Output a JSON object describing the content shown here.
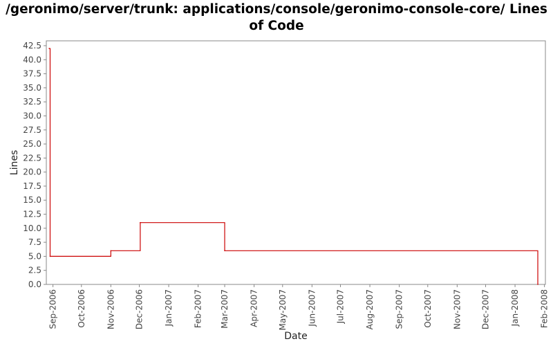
{
  "chart_data": {
    "type": "line",
    "title": "/geronimo/server/trunk: applications/console/geronimo-console-core/ Lines of Code",
    "xlabel": "Date",
    "ylabel": "Lines",
    "x_tick_labels": [
      "Sep-2006",
      "Oct-2006",
      "Nov-2006",
      "Dec-2006",
      "Jan-2007",
      "Feb-2007",
      "Mar-2007",
      "Apr-2007",
      "May-2007",
      "Jun-2007",
      "Jul-2007",
      "Aug-2007",
      "Sep-2007",
      "Oct-2007",
      "Nov-2007",
      "Dec-2007",
      "Jan-2008",
      "Feb-2008"
    ],
    "y_tick_labels": [
      "0.0",
      "2.5",
      "5.0",
      "7.5",
      "10.0",
      "12.5",
      "15.0",
      "17.5",
      "20.0",
      "22.5",
      "25.0",
      "27.5",
      "30.0",
      "32.5",
      "35.0",
      "37.5",
      "40.0",
      "42.5"
    ],
    "ylim": [
      0,
      42.5
    ],
    "xlim": [
      "2006-08-25",
      "2008-02-02"
    ],
    "grid": false,
    "series": [
      {
        "color": "#cc0000",
        "step": true,
        "points": [
          {
            "x": "2006-08-28",
            "y": 42
          },
          {
            "x": "2006-08-29",
            "y": 5
          },
          {
            "x": "2006-11-01",
            "y": 6
          },
          {
            "x": "2006-12-02",
            "y": 11
          },
          {
            "x": "2007-03-01",
            "y": 6
          },
          {
            "x": "2008-01-25",
            "y": 0
          }
        ]
      }
    ]
  }
}
